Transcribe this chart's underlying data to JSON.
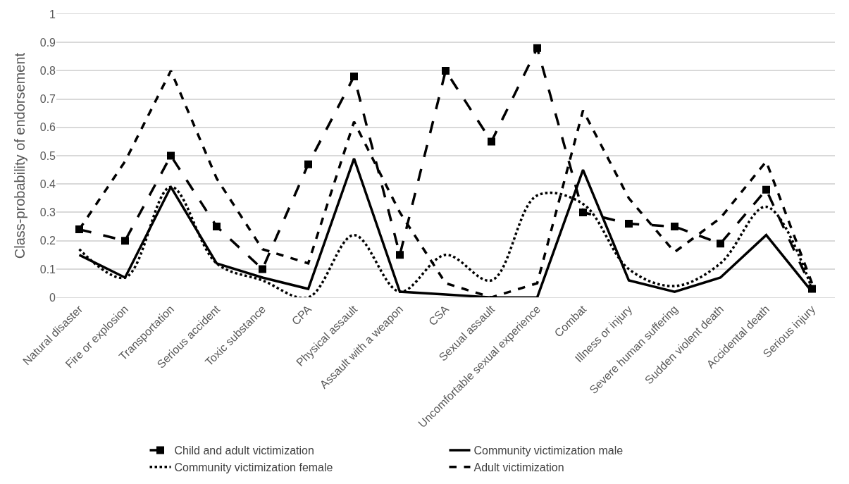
{
  "chart_data": {
    "type": "line",
    "ylabel": "Class-probability of endorsement",
    "categories": [
      "Natural disaster",
      "Fire or explosion",
      "Transportation",
      "Serious accident",
      "Toxic substance",
      "CPA",
      "Physical assault",
      "Assault with a weapon",
      "CSA",
      "Sexual assault",
      "Uncomfortable sexual experience",
      "Combat",
      "Illness or injury",
      "Severe human suffering",
      "Sudden violent death",
      "Accidental death",
      "Serious injury"
    ],
    "series": [
      {
        "name": "Child and adult victimization",
        "color": "#000000",
        "marker": "square",
        "line_style": "dashed",
        "values": [
          0.24,
          0.2,
          0.5,
          0.25,
          0.1,
          0.47,
          0.78,
          0.15,
          0.8,
          0.55,
          0.88,
          0.3,
          0.26,
          0.25,
          0.19,
          0.38,
          0.03
        ]
      },
      {
        "name": "Community victimization male",
        "color": "#000000",
        "marker": "none",
        "line_style": "solid",
        "values": [
          0.15,
          0.07,
          0.39,
          0.12,
          0.07,
          0.03,
          0.49,
          0.02,
          0.01,
          0,
          0,
          0.45,
          0.06,
          0.02,
          0.07,
          0.22,
          0.02
        ]
      },
      {
        "name": "Community victimization female",
        "color": "#000000",
        "marker": "none",
        "line_style": "dotted",
        "values": [
          0.17,
          0.07,
          0.39,
          0.12,
          0.06,
          0,
          0.22,
          0.02,
          0.15,
          0.06,
          0.36,
          0.33,
          0.1,
          0.04,
          0.12,
          0.32,
          0.03
        ]
      },
      {
        "name": "Adult victimization",
        "color": "#000000",
        "marker": "none",
        "line_style": "dashed",
        "values": [
          0.24,
          0.48,
          0.8,
          0.42,
          0.17,
          0.12,
          0.62,
          0.3,
          0.05,
          0,
          0.05,
          0.66,
          0.35,
          0.16,
          0.28,
          0.48,
          0.05
        ]
      }
    ],
    "ylim": [
      0,
      1
    ],
    "yticks": [
      0,
      0.1,
      0.2,
      0.3,
      0.4,
      0.5,
      0.6,
      0.7,
      0.8,
      0.9,
      1
    ],
    "grid": "y",
    "legend": "bottom"
  }
}
